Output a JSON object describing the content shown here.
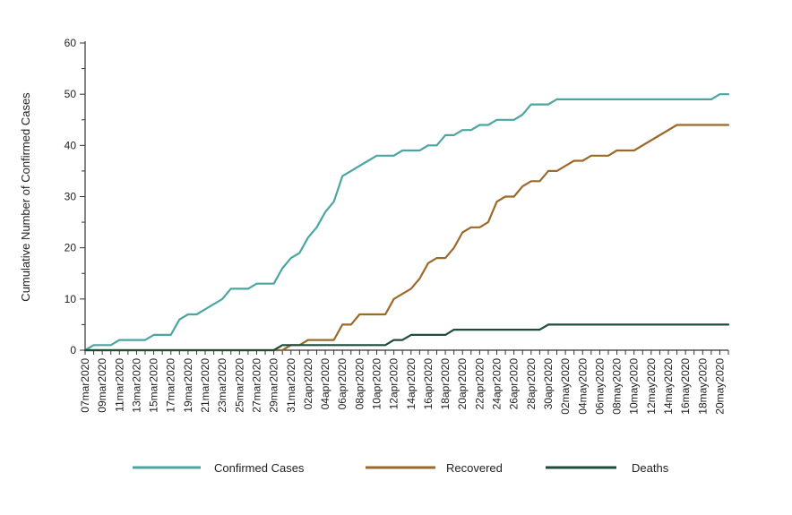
{
  "chart_data": {
    "type": "line",
    "title": "",
    "xlabel": "",
    "ylabel": "Cumulative Number of Confirmed Cases",
    "ylim": [
      0,
      60
    ],
    "yticks": [
      0,
      10,
      20,
      30,
      40,
      50,
      60
    ],
    "xlim": [
      "07mar2020",
      "21may2020"
    ],
    "x_tick_labels": [
      "07mar2020",
      "09mar2020",
      "11mar2020",
      "13mar2020",
      "15mar2020",
      "17mar2020",
      "19mar2020",
      "21mar2020",
      "23mar2020",
      "25mar2020",
      "27mar2020",
      "29mar2020",
      "31mar2020",
      "02apr2020",
      "04apr2020",
      "06apr2020",
      "08apr2020",
      "10apr2020",
      "12apr2020",
      "14apr2020",
      "16apr2020",
      "18apr2020",
      "20apr2020",
      "22apr2020",
      "24apr2020",
      "26apr2020",
      "28apr2020",
      "30apr2020",
      "02may2020",
      "04may2020",
      "06may2020",
      "08may2020",
      "10may2020",
      "12may2020",
      "14may2020",
      "16may2020",
      "18may2020",
      "20may2020"
    ],
    "grid": false,
    "legend_position": "bottom",
    "series": [
      {
        "name": "Confirmed Cases",
        "color": "#4aa6a0",
        "points": [
          [
            "07mar2020",
            0
          ],
          [
            "08mar2020",
            1
          ],
          [
            "10mar2020",
            1
          ],
          [
            "11mar2020",
            2
          ],
          [
            "14mar2020",
            2
          ],
          [
            "15mar2020",
            3
          ],
          [
            "17mar2020",
            3
          ],
          [
            "18mar2020",
            6
          ],
          [
            "19mar2020",
            7
          ],
          [
            "20mar2020",
            7
          ],
          [
            "21mar2020",
            8
          ],
          [
            "22mar2020",
            9
          ],
          [
            "23mar2020",
            10
          ],
          [
            "24mar2020",
            12
          ],
          [
            "26mar2020",
            12
          ],
          [
            "27mar2020",
            13
          ],
          [
            "29mar2020",
            13
          ],
          [
            "30mar2020",
            16
          ],
          [
            "31mar2020",
            18
          ],
          [
            "01apr2020",
            19
          ],
          [
            "02apr2020",
            22
          ],
          [
            "03apr2020",
            24
          ],
          [
            "04apr2020",
            27
          ],
          [
            "05apr2020",
            29
          ],
          [
            "06apr2020",
            34
          ],
          [
            "07apr2020",
            35
          ],
          [
            "08apr2020",
            36
          ],
          [
            "09apr2020",
            37
          ],
          [
            "10apr2020",
            38
          ],
          [
            "12apr2020",
            38
          ],
          [
            "13apr2020",
            39
          ],
          [
            "15apr2020",
            39
          ],
          [
            "16apr2020",
            40
          ],
          [
            "17apr2020",
            40
          ],
          [
            "18apr2020",
            42
          ],
          [
            "19apr2020",
            42
          ],
          [
            "20apr2020",
            43
          ],
          [
            "21apr2020",
            43
          ],
          [
            "22apr2020",
            44
          ],
          [
            "23apr2020",
            44
          ],
          [
            "24apr2020",
            45
          ],
          [
            "26apr2020",
            45
          ],
          [
            "27apr2020",
            46
          ],
          [
            "28apr2020",
            48
          ],
          [
            "30apr2020",
            48
          ],
          [
            "01may2020",
            49
          ],
          [
            "19may2020",
            49
          ],
          [
            "20may2020",
            50
          ],
          [
            "21may2020",
            50
          ]
        ]
      },
      {
        "name": "Recovered",
        "color": "#9b6a2a",
        "points": [
          [
            "07mar2020",
            0
          ],
          [
            "30mar2020",
            0
          ],
          [
            "31mar2020",
            1
          ],
          [
            "01apr2020",
            1
          ],
          [
            "02apr2020",
            2
          ],
          [
            "05apr2020",
            2
          ],
          [
            "06apr2020",
            5
          ],
          [
            "07apr2020",
            5
          ],
          [
            "08apr2020",
            7
          ],
          [
            "11apr2020",
            7
          ],
          [
            "12apr2020",
            10
          ],
          [
            "13apr2020",
            11
          ],
          [
            "14apr2020",
            12
          ],
          [
            "15apr2020",
            14
          ],
          [
            "16apr2020",
            17
          ],
          [
            "17apr2020",
            18
          ],
          [
            "18apr2020",
            18
          ],
          [
            "19apr2020",
            20
          ],
          [
            "20apr2020",
            23
          ],
          [
            "21apr2020",
            24
          ],
          [
            "22apr2020",
            24
          ],
          [
            "23apr2020",
            25
          ],
          [
            "24apr2020",
            29
          ],
          [
            "25apr2020",
            30
          ],
          [
            "26apr2020",
            30
          ],
          [
            "27apr2020",
            32
          ],
          [
            "28apr2020",
            33
          ],
          [
            "29apr2020",
            33
          ],
          [
            "30apr2020",
            35
          ],
          [
            "01may2020",
            35
          ],
          [
            "02may2020",
            36
          ],
          [
            "03may2020",
            37
          ],
          [
            "04may2020",
            37
          ],
          [
            "05may2020",
            38
          ],
          [
            "07may2020",
            38
          ],
          [
            "08may2020",
            39
          ],
          [
            "10may2020",
            39
          ],
          [
            "15may2020",
            44
          ],
          [
            "21may2020",
            44
          ]
        ]
      },
      {
        "name": "Deaths",
        "color": "#1f4d3c",
        "points": [
          [
            "07mar2020",
            0
          ],
          [
            "29mar2020",
            0
          ],
          [
            "30mar2020",
            1
          ],
          [
            "11apr2020",
            1
          ],
          [
            "12apr2020",
            2
          ],
          [
            "13apr2020",
            2
          ],
          [
            "14apr2020",
            3
          ],
          [
            "18apr2020",
            3
          ],
          [
            "19apr2020",
            4
          ],
          [
            "29apr2020",
            4
          ],
          [
            "30apr2020",
            5
          ],
          [
            "21may2020",
            5
          ]
        ]
      }
    ]
  }
}
